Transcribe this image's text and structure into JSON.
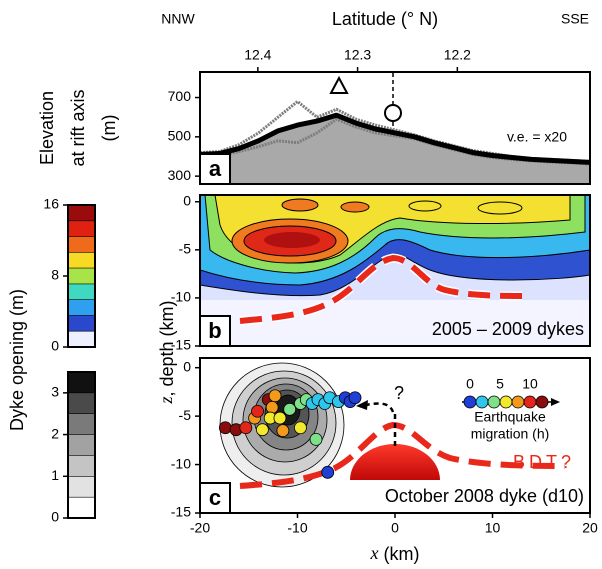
{
  "chart_data": [
    {
      "type": "line",
      "panel_label": "a",
      "x2_label": "Latitude (° N)",
      "x2_left": "NNW",
      "x2_right": "SSE",
      "x2lim": [
        12.458,
        12.067
      ],
      "x2ticks": [
        12.4,
        12.3,
        12.2
      ],
      "y_label": [
        "Elevation",
        "at rift axis",
        "(m)"
      ],
      "annotation": "v.e. = x20",
      "xlim": [
        -20,
        20
      ],
      "ylim": [
        260,
        830
      ],
      "yticks": [
        300,
        500,
        700
      ],
      "fill_color": "#a9a9a9",
      "x": [
        -20,
        -18,
        -16,
        -14,
        -12,
        -10,
        -8,
        -6,
        -4,
        -2,
        0,
        2,
        4,
        6,
        8,
        10,
        12,
        14,
        16,
        18,
        20
      ],
      "series": [
        {
          "color": "#7d7d7d",
          "values": [
            420,
            425,
            460,
            520,
            600,
            680,
            600,
            640,
            590,
            560,
            535,
            510,
            480,
            455,
            430,
            415,
            400,
            390,
            385,
            380,
            375
          ]
        },
        {
          "color": "#7d7d7d",
          "values": [
            400,
            405,
            425,
            450,
            480,
            470,
            520,
            590,
            550,
            520,
            505,
            490,
            460,
            435,
            410,
            395,
            385,
            378,
            372,
            368,
            362
          ]
        },
        {
          "color": "#000000",
          "values": [
            410,
            415,
            440,
            480,
            530,
            560,
            580,
            610,
            570,
            540,
            520,
            500,
            470,
            445,
            420,
            405,
            395,
            385,
            380,
            375,
            370
          ]
        }
      ]
    },
    {
      "type": "contour",
      "panel_label": "b",
      "annotation": "2005 – 2009 dykes",
      "xlim": [
        -20,
        20
      ],
      "ylim": [
        -15,
        0.7
      ],
      "yticks": [
        0,
        -5,
        -10,
        -15
      ]
    },
    {
      "type": "scatter",
      "panel_label": "c",
      "annotation": "October 2008 dyke (d10)",
      "question": "?",
      "bdt_label": "BDT?",
      "x_label_var": "x",
      "x_label": " (km)",
      "y_label_var": "z",
      "y_label": ", depth (km)",
      "xlim": [
        -20,
        20
      ],
      "xticks": [
        -20,
        -10,
        0,
        10,
        20
      ],
      "ylim": [
        -15,
        1
      ],
      "yticks": [
        0,
        -5,
        -10,
        -15
      ],
      "x": [
        -17.4,
        -16.3,
        -15.3,
        -14.4,
        -14.1,
        -13.6,
        -13.0,
        -12.6,
        -12.3,
        -12.8,
        -11.8,
        -11.5,
        -9.7,
        -10.8,
        -9.7,
        -9.1,
        -8.5,
        -7.9,
        -8.1,
        -7.2,
        -6.7,
        -5.8,
        -5.1,
        -4.6,
        -4.1,
        -6.9
      ],
      "y": [
        -6.2,
        -6.4,
        -6.2,
        -5.2,
        -4.5,
        -6.4,
        -3.3,
        -4.1,
        -2.9,
        -5.2,
        -5.2,
        -6.5,
        -6.2,
        -4.3,
        -3.7,
        -3.3,
        -3.7,
        -3.3,
        -7.4,
        -3.7,
        -3.1,
        -3.5,
        -3.1,
        -3.5,
        -3.1,
        -10.8
      ],
      "hours": [
        12,
        12,
        11,
        9,
        10,
        7,
        12,
        9,
        8,
        7,
        6,
        9,
        6,
        5,
        4,
        4,
        3,
        3,
        4,
        2,
        2,
        2,
        1,
        1,
        0.5,
        0
      ],
      "colorscale": {
        "values": [
          0,
          2,
          4,
          6,
          8,
          10,
          12
        ],
        "colors": [
          "#1f3fd6",
          "#2fc6ee",
          "#7fe08a",
          "#f2e82c",
          "#f39a1c",
          "#e3261a",
          "#8a0d0d"
        ]
      },
      "legend_ticks": [
        0,
        5,
        10
      ],
      "legend_title": [
        "Earthquake",
        "migration (h)"
      ]
    },
    {
      "type": "colorbar",
      "label": "Dyke opening (m)",
      "ylim": [
        0,
        16
      ],
      "yticks": [
        0,
        8,
        16
      ],
      "colors": [
        "#eef0ff",
        "#2a48cc",
        "#2f9ff0",
        "#3fd8c0",
        "#a8e448",
        "#f6da24",
        "#ef6a1a",
        "#e02010",
        "#9a0c0c"
      ]
    },
    {
      "type": "colorbar",
      "ylim": [
        0,
        3.5
      ],
      "yticks": [
        0,
        1,
        2,
        3
      ],
      "colors": [
        "#ffffff",
        "#e2e2e2",
        "#c4c4c4",
        "#a2a2a2",
        "#7a7a7a",
        "#4a4a4a",
        "#111111"
      ]
    }
  ]
}
